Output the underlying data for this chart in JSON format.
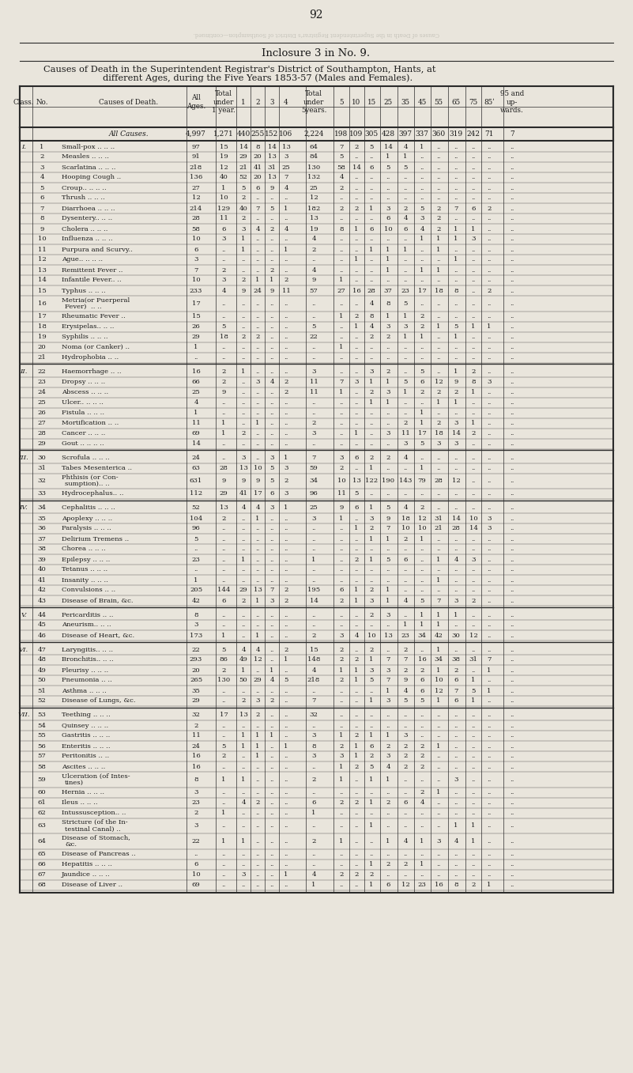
{
  "page_number": "92",
  "inclosure_title": "Inclosure 3 in No. 9.",
  "main_title_line1": "Causes of Death in the Superintendent Registrar's District of Southampton, Hants, at",
  "main_title_line2": "different Ages, during the Five Years 1853-57 (Males and Females).",
  "all_causes_row": [
    "",
    "",
    "All Causes.",
    "4,997",
    "1,271",
    "440",
    "255",
    "152",
    "106",
    "2,224",
    "198",
    "109",
    "305",
    "428",
    "397",
    "337",
    "360",
    "319",
    "242",
    "71",
    "7"
  ],
  "rows": [
    [
      "I.",
      "1",
      "Small-pox .. .. ..",
      "97",
      "15",
      "14",
      "8",
      "14",
      "13",
      "64",
      "7",
      "2",
      "5",
      "14",
      "4",
      "1",
      "..",
      "..",
      "..",
      "..",
      ".."
    ],
    [
      "",
      "2",
      "Measles .. .. ..",
      "91",
      "19",
      "29",
      "20",
      "13",
      "3",
      "84",
      "5",
      "..",
      "..",
      "1",
      "1",
      "..",
      "..",
      "..",
      "..",
      ".."
    ],
    [
      "",
      "3",
      "Scarlatina .. .. ..",
      "218",
      "12",
      "21",
      "41",
      "31",
      "25",
      "130",
      "58",
      "14",
      "6",
      "5",
      "5",
      "..",
      "..",
      "..",
      "..",
      ".."
    ],
    [
      "",
      "4",
      "Hooping Cough ..",
      "136",
      "40",
      "52",
      "20",
      "13",
      "7",
      "132",
      "4",
      "..",
      "..",
      "..",
      "..",
      "..",
      "..",
      "..",
      "..",
      ".."
    ],
    [
      "",
      "5",
      "Croup.. .. .. ..",
      "27",
      "1",
      "5",
      "6",
      "9",
      "4",
      "25",
      "2",
      "..",
      "..",
      "..",
      "..",
      "..",
      "..",
      "..",
      "..",
      ".."
    ],
    [
      "",
      "6",
      "Thrush .. .. ..",
      "12",
      "10",
      "2",
      "..",
      "..",
      "..",
      "12",
      "..",
      "..",
      "..",
      "..",
      "..",
      "..",
      "..",
      "..",
      "..",
      ".."
    ],
    [
      "",
      "7",
      "Diarrhoea .. .. ..",
      "214",
      "129",
      "40",
      "7",
      "5",
      "1",
      "182",
      "2",
      "2",
      "1",
      "3",
      "2",
      "5",
      "2",
      "7",
      "6",
      "2"
    ],
    [
      "",
      "8",
      "Dysentery.. .. ..",
      "28",
      "11",
      "2",
      "..",
      "..",
      "..",
      "13",
      "..",
      "..",
      "..",
      "6",
      "4",
      "3",
      "2",
      "..",
      "..",
      "..",
      ".."
    ],
    [
      "",
      "9",
      "Cholera .. .. ..",
      "58",
      "6",
      "3",
      "4",
      "2",
      "4",
      "19",
      "8",
      "1",
      "6",
      "10",
      "6",
      "4",
      "2",
      "1",
      "1",
      "..",
      ".."
    ],
    [
      "",
      "10",
      "Influenza .. .. ..",
      "10",
      "3",
      "1",
      "..",
      "..",
      "..",
      "4",
      "..",
      "..",
      "..",
      "..",
      "..",
      "1",
      "1",
      "1",
      "3",
      "..",
      ".."
    ],
    [
      "",
      "11",
      "Purpura and Scurvy..",
      "6",
      "..",
      "1",
      "..",
      "..",
      "1",
      "2",
      "..",
      "..",
      "1",
      "1",
      "1",
      "..",
      "1",
      "..",
      "..",
      "..",
      ".."
    ],
    [
      "",
      "12",
      "Ague.. .. .. ..",
      "3",
      "..",
      "..",
      "..",
      "..",
      "..",
      "..",
      "..",
      "1",
      "..",
      "1",
      "..",
      "..",
      "..",
      "1",
      "..",
      "..",
      ".."
    ],
    [
      "",
      "13",
      "Remittent Fever ..",
      "7",
      "2",
      "..",
      "..",
      "2",
      "..",
      "4",
      "..",
      "..",
      "..",
      "1",
      "..",
      "1",
      "1",
      "..",
      "..",
      "..",
      ".."
    ],
    [
      "",
      "14",
      "Infantile Fever.. ..",
      "10",
      "3",
      "2",
      "1",
      "1",
      "2",
      "9",
      "1",
      "..",
      "..",
      "..",
      "..",
      "..",
      "..",
      "..",
      "..",
      "..",
      ".."
    ],
    [
      "",
      "15",
      "Typhus .. .. ..",
      "233",
      "4",
      "9",
      "24",
      "9",
      "11",
      "57",
      "27",
      "16",
      "28",
      "37",
      "23",
      "17",
      "18",
      "8",
      "..",
      "2",
      ".."
    ],
    [
      "",
      "16",
      "Metria(or Puerperal\n  Fever)  .. ..",
      "17",
      "..",
      "..",
      "..",
      "..",
      "..",
      "..",
      "..",
      "..",
      "4",
      "8",
      "5",
      "..",
      "..",
      "..",
      "..",
      "..",
      ".."
    ],
    [
      "",
      "17",
      "Rheumatic Fever ..",
      "15",
      "..",
      "..",
      "..",
      "..",
      "..",
      "..",
      "1",
      "2",
      "8",
      "1",
      "1",
      "2",
      "..",
      "..",
      "..",
      "..",
      ".."
    ],
    [
      "",
      "18",
      "Erysipelas.. .. ..",
      "26",
      "5",
      "..",
      "..",
      "..",
      "..",
      "5",
      "..",
      "1",
      "4",
      "3",
      "3",
      "2",
      "1",
      "5",
      "1",
      "1",
      ".."
    ],
    [
      "",
      "19",
      "Syphilis .. .. ..",
      "29",
      "18",
      "2",
      "2",
      "..",
      "..",
      "22",
      "..",
      "..",
      "2",
      "2",
      "1",
      "1",
      "..",
      "1",
      "..",
      "..",
      ".."
    ],
    [
      "",
      "20",
      "Noma (or Canker) ..",
      "1",
      "..",
      "..",
      "..",
      "..",
      "..",
      "..",
      "1",
      "..",
      "..",
      "..",
      "..",
      "..",
      "..",
      "..",
      "..",
      "..",
      ".."
    ],
    [
      "",
      "21",
      "Hydrophobia .. ..",
      "..",
      "..",
      "..",
      "..",
      "..",
      "..",
      "..",
      "..",
      "..",
      "..",
      "..",
      "..",
      "..",
      "..",
      "..",
      "..",
      "..",
      ".."
    ],
    [
      "II.",
      "22",
      "Haemorrhage .. ..",
      "16",
      "2",
      "1",
      "..",
      "..",
      "..",
      "3",
      "..",
      "..",
      "3",
      "2",
      "..",
      "5",
      "..",
      "1",
      "2",
      "..",
      ".."
    ],
    [
      "",
      "23",
      "Dropsy .. .. ..",
      "66",
      "2",
      "..",
      "3",
      "4",
      "2",
      "11",
      "7",
      "3",
      "1",
      "1",
      "5",
      "6",
      "12",
      "9",
      "8",
      "3",
      ".."
    ],
    [
      "",
      "24",
      "Abscess .. .. ..",
      "25",
      "9",
      "..",
      "..",
      "..",
      "2",
      "11",
      "1",
      "..",
      "2",
      "3",
      "1",
      "2",
      "2",
      "2",
      "1",
      "..",
      ".."
    ],
    [
      "",
      "25",
      "Ulcer.. .. .. ..",
      "4",
      "..",
      "..",
      "..",
      "..",
      "..",
      "..",
      "..",
      "..",
      "1",
      "1",
      "..",
      "..",
      "1",
      "1",
      "..",
      "..",
      ".."
    ],
    [
      "",
      "26",
      "Fistula .. .. ..",
      "1",
      "..",
      "..",
      "..",
      "..",
      "..",
      "..",
      "..",
      "..",
      "..",
      "..",
      "..",
      "1",
      "..",
      "..",
      "..",
      "..",
      ".."
    ],
    [
      "",
      "27",
      "Mortification .. ..",
      "11",
      "1",
      "..",
      "1",
      "..",
      "..",
      "2",
      "..",
      "..",
      "..",
      "..",
      "2",
      "1",
      "2",
      "3",
      "1",
      "..",
      ".."
    ],
    [
      "",
      "28",
      "Cancer .. .. ..",
      "69",
      "1",
      "2",
      "..",
      "..",
      "..",
      "3",
      "..",
      "1",
      "..",
      "3",
      "11",
      "17",
      "18",
      "14",
      "2",
      "..",
      ".."
    ],
    [
      "",
      "29",
      "Gout .. .. .. ..",
      "14",
      "..",
      "..",
      "..",
      "..",
      "..",
      "..",
      "..",
      "..",
      "..",
      "..",
      "3",
      "5",
      "3",
      "3",
      "..",
      "..",
      ".."
    ],
    [
      "III.",
      "30",
      "Scrofula .. .. ..",
      "24",
      "..",
      "3",
      "..",
      "3",
      "1",
      "7",
      "3",
      "6",
      "2",
      "2",
      "4",
      "..",
      "..",
      "..",
      "..",
      "..",
      ".."
    ],
    [
      "",
      "31",
      "Tabes Mesenterica ..",
      "63",
      "28",
      "13",
      "10",
      "5",
      "3",
      "59",
      "2",
      "..",
      "1",
      "..",
      "..",
      "1",
      "..",
      "..",
      "..",
      "..",
      ".."
    ],
    [
      "",
      "32",
      "Phthisis (or Con-\n  sumption).. ..",
      "631",
      "9",
      "9",
      "9",
      "5",
      "2",
      "34",
      "10",
      "13",
      "122",
      "190",
      "143",
      "79",
      "28",
      "12",
      "..",
      "..",
      ".."
    ],
    [
      "",
      "33",
      "Hydrocephalus.. ..",
      "112",
      "29",
      "41",
      "17",
      "6",
      "3",
      "96",
      "11",
      "5",
      "..",
      "..",
      "..",
      "..",
      "..",
      "..",
      "..",
      "..",
      ".."
    ],
    [
      "IV.",
      "34",
      "Cephalitis .. .. ..",
      "52",
      "13",
      "4",
      "4",
      "3",
      "1",
      "25",
      "9",
      "6",
      "1",
      "5",
      "4",
      "2",
      "..",
      "..",
      "..",
      "..",
      ".."
    ],
    [
      "",
      "35",
      "Apoplexy .. .. ..",
      "104",
      "2",
      "..",
      "1",
      "..",
      "..",
      "3",
      "1",
      "..",
      "3",
      "9",
      "18",
      "12",
      "31",
      "14",
      "10",
      "3",
      ".."
    ],
    [
      "",
      "36",
      "Paralysis .. .. ..",
      "96",
      "..",
      "..",
      "..",
      "..",
      "..",
      "..",
      "..",
      "1",
      "2",
      "7",
      "10",
      "10",
      "21",
      "28",
      "14",
      "3",
      ".."
    ],
    [
      "",
      "37",
      "Delirium Tremens ..",
      "5",
      "..",
      "..",
      "..",
      "..",
      "..",
      "..",
      "..",
      "..",
      "1",
      "1",
      "2",
      "1",
      "..",
      "..",
      "..",
      "..",
      ".."
    ],
    [
      "",
      "38",
      "Chorea .. .. ..",
      "..",
      "..",
      "..",
      "..",
      "..",
      "..",
      "..",
      "..",
      "..",
      "..",
      "..",
      "..",
      "..",
      "..",
      "..",
      "..",
      "..",
      ".."
    ],
    [
      "",
      "39",
      "Epilepsy .. .. ..",
      "23",
      "..",
      "1",
      "..",
      "..",
      "..",
      "1",
      "..",
      "2",
      "1",
      "5",
      "6",
      "..",
      "1",
      "4",
      "3",
      "..",
      ".."
    ],
    [
      "",
      "40",
      "Tetanus .. .. ..",
      "..",
      "..",
      "..",
      "..",
      "..",
      "..",
      "..",
      "..",
      "..",
      "..",
      "..",
      "..",
      "..",
      "..",
      "..",
      "..",
      "..",
      ".."
    ],
    [
      "",
      "41",
      "Insanity .. .. ..",
      "1",
      "..",
      "..",
      "..",
      "..",
      "..",
      "..",
      "..",
      "..",
      "..",
      "..",
      "..",
      "..",
      "1",
      "..",
      "..",
      "..",
      ".."
    ],
    [
      "",
      "42",
      "Convulsions .. ..",
      "205",
      "144",
      "29",
      "13",
      "7",
      "2",
      "195",
      "6",
      "1",
      "2",
      "1",
      "..",
      "..",
      "..",
      "..",
      "..",
      "..",
      ".."
    ],
    [
      "",
      "43",
      "Disease of Brain, &c.",
      "42",
      "6",
      "2",
      "1",
      "3",
      "2",
      "14",
      "2",
      "1",
      "3",
      "1",
      "4",
      "5",
      "7",
      "3",
      "2",
      "..",
      ".."
    ],
    [
      "V.",
      "44",
      "Pericarditis .. ..",
      "8",
      "..",
      "..",
      "..",
      "..",
      "..",
      "..",
      "..",
      "..",
      "2",
      "3",
      "..",
      "1",
      "1",
      "1",
      "..",
      "..",
      ".."
    ],
    [
      "",
      "45",
      "Aneurism.. .. ..",
      "3",
      "..",
      "..",
      "..",
      "..",
      "..",
      "..",
      "..",
      "..",
      "..",
      "..",
      "1",
      "1",
      "1",
      "..",
      "..",
      "..",
      ".."
    ],
    [
      "",
      "46",
      "Disease of Heart, &c.",
      "173",
      "1",
      "..",
      "1",
      "..",
      "..",
      "2",
      "3",
      "4",
      "10",
      "13",
      "23",
      "34",
      "42",
      "30",
      "12",
      "..",
      ".."
    ],
    [
      "VI.",
      "47",
      "Laryngitis.. .. ..",
      "22",
      "5",
      "4",
      "4",
      "..",
      "2",
      "15",
      "2",
      "..",
      "2",
      "..",
      "2",
      "..",
      "1",
      "..",
      "..",
      "..",
      ".."
    ],
    [
      "",
      "48",
      "Bronchitis.. .. ..",
      "293",
      "86",
      "49",
      "12",
      "..",
      "1",
      "148",
      "2",
      "2",
      "1",
      "7",
      "7",
      "16",
      "34",
      "38",
      "31",
      "7",
      ".."
    ],
    [
      "",
      "49",
      "Pleurisy .. .. ..",
      "20",
      "2",
      "1",
      "..",
      "1",
      "..",
      "4",
      "1",
      "1",
      "3",
      "3",
      "2",
      "2",
      "1",
      "2",
      "..",
      "1",
      ".."
    ],
    [
      "",
      "50",
      "Pneumonia .. ..",
      "265",
      "130",
      "50",
      "29",
      "4",
      "5",
      "218",
      "2",
      "1",
      "5",
      "7",
      "9",
      "6",
      "10",
      "6",
      "1",
      "..",
      ".."
    ],
    [
      "",
      "51",
      "Asthma .. .. ..",
      "35",
      "..",
      "..",
      "..",
      "..",
      "..",
      "..",
      "..",
      "..",
      "..",
      "1",
      "4",
      "6",
      "12",
      "7",
      "5",
      "1",
      ".."
    ],
    [
      "",
      "52",
      "Disease of Lungs, &c.",
      "29",
      "..",
      "2",
      "3",
      "2",
      "..",
      "7",
      "..",
      "..",
      "1",
      "3",
      "5",
      "5",
      "1",
      "6",
      "1",
      "..",
      ".."
    ],
    [
      "VII.",
      "53",
      "Teething .. .. ..",
      "32",
      "17",
      "13",
      "2",
      "..",
      "..",
      "32",
      "..",
      "..",
      "..",
      "..",
      "..",
      "..",
      "..",
      "..",
      "..",
      "..",
      ".."
    ],
    [
      "",
      "54",
      "Quinsey .. .. ..",
      "2",
      "..",
      "..",
      "..",
      "..",
      "..",
      "..",
      "..",
      "..",
      "..",
      "..",
      "..",
      "..",
      "..",
      "..",
      "..",
      "..",
      ".."
    ],
    [
      "",
      "55",
      "Gastritis .. .. ..",
      "11",
      "..",
      "1",
      "1",
      "1",
      "..",
      "3",
      "1",
      "2",
      "1",
      "1",
      "3",
      "..",
      "..",
      "..",
      "..",
      "..",
      ".."
    ],
    [
      "",
      "56",
      "Enteritis .. .. ..",
      "24",
      "5",
      "1",
      "1",
      "..",
      "1",
      "8",
      "2",
      "1",
      "6",
      "2",
      "2",
      "2",
      "1",
      "..",
      "..",
      "..",
      ".."
    ],
    [
      "",
      "57",
      "Peritonitis .. ..",
      "16",
      "2",
      "..",
      "1",
      "..",
      "..",
      "3",
      "3",
      "1",
      "2",
      "3",
      "2",
      "2",
      "..",
      "..",
      "..",
      "..",
      ".."
    ],
    [
      "",
      "58",
      "Ascites .. .. ..",
      "16",
      "..",
      "..",
      "..",
      "..",
      "..",
      "..",
      "1",
      "2",
      "5",
      "4",
      "2",
      "2",
      "..",
      "..",
      "..",
      "..",
      ".."
    ],
    [
      "",
      "59",
      "Ulceration (of Intes-\n  tines)",
      "8",
      "1",
      "1",
      "..",
      "..",
      "..",
      "2",
      "1",
      "..",
      "1",
      "1",
      "..",
      "..",
      "..",
      "3",
      "..",
      "..",
      ".."
    ],
    [
      "",
      "60",
      "Hernia .. .. ..",
      "3",
      "..",
      "..",
      "..",
      "..",
      "..",
      "..",
      "..",
      "..",
      "..",
      "..",
      "..",
      "2",
      "1",
      "..",
      "..",
      "..",
      ".."
    ],
    [
      "",
      "61",
      "Ileus .. .. ..",
      "23",
      "..",
      "4",
      "2",
      "..",
      "..",
      "6",
      "2",
      "2",
      "1",
      "2",
      "6",
      "4",
      "..",
      "..",
      "..",
      "..",
      ".."
    ],
    [
      "",
      "62",
      "Intussusception.. ..",
      "2",
      "1",
      "..",
      "..",
      "..",
      "..",
      "1",
      "..",
      "..",
      "..",
      "..",
      "..",
      "..",
      "..",
      "..",
      "..",
      "..",
      ".."
    ],
    [
      "",
      "63",
      "Stricture (of the In-\n  testinal Canal) ..",
      "3",
      "..",
      "..",
      "..",
      "..",
      "..",
      "..",
      "..",
      "..",
      "1",
      "..",
      "..",
      "..",
      "..",
      "1",
      "1",
      "..",
      ".."
    ],
    [
      "",
      "64",
      "Disease of Stomach,\n  &c.",
      "22",
      "1",
      "1",
      "..",
      "..",
      "..",
      "2",
      "1",
      "..",
      "..",
      "1",
      "4",
      "1",
      "3",
      "4",
      "1",
      "..",
      ".."
    ],
    [
      "",
      "65",
      "Disease of Pancreas ..",
      "..",
      "..",
      "..",
      "..",
      "..",
      "..",
      "..",
      "..",
      "..",
      "..",
      "..",
      "..",
      "..",
      "..",
      "..",
      "..",
      "..",
      ".."
    ],
    [
      "",
      "66",
      "Hepatitis .. .. ..",
      "6",
      "..",
      "..",
      "..",
      "..",
      "..",
      "..",
      "..",
      "..",
      "1",
      "2",
      "2",
      "1",
      "..",
      "..",
      "..",
      "..",
      ".."
    ],
    [
      "",
      "67",
      "Jaundice .. .. ..",
      "10",
      "..",
      "3",
      "..",
      "..",
      "1",
      "4",
      "2",
      "2",
      "2",
      "..",
      "..",
      "..",
      "..",
      "..",
      "..",
      "..",
      ".."
    ],
    [
      "",
      "68",
      "Disease of Liver ..",
      "69",
      "..",
      "..",
      "..",
      "..",
      "..",
      "1",
      "..",
      "..",
      "1",
      "6",
      "12",
      "23",
      "16",
      "8",
      "2",
      "1",
      ".."
    ]
  ],
  "background_color": "#e9e5dc",
  "text_color": "#1a1a1a",
  "line_color": "#2a2a2a"
}
